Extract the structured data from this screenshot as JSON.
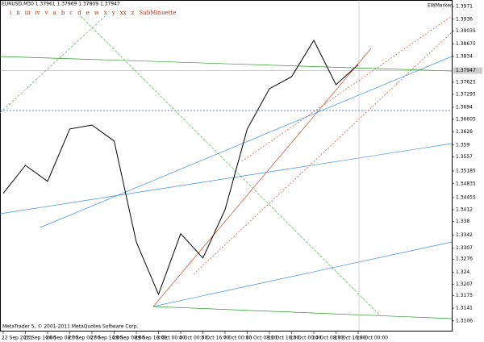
{
  "chart_data": {
    "type": "line",
    "title": "EURUSD,M30  1.37961 1.37969 1.37809 1.37947",
    "wave_menu": [
      "i",
      "ii",
      "iii",
      "iv",
      "v",
      "a",
      "b",
      "c",
      "d",
      "e",
      "w",
      "x",
      "y",
      "xx",
      "z",
      "SubMinuette"
    ],
    "corner_label": "EWMarker",
    "copyright": "MetaTrader 5, © 2001-2011 MetaQuotes Software Corp.",
    "categories": [
      "22 Sep 2011",
      "23 Sep 16:00",
      "26 Sep 08:00",
      "27 Sep 00:00",
      "27 Sep 16:00",
      "28 Sep 08:00",
      "29 Sep 16:00",
      "3 Oct 00:00",
      "4 Oct 00:00",
      "5 Oct 16:00",
      "7 Oct 00:00",
      "10 Oct 08:00",
      "11 Oct 16:00",
      "13 Oct 00:00",
      "14 Oct 08:00",
      "17 Oct 16:00",
      "19 Oct 00:00"
    ],
    "series": [
      {
        "name": "EURUSD",
        "color": "#000000",
        "values": [
          1.3457,
          1.3534,
          1.349,
          1.3634,
          1.3645,
          1.3601,
          1.3323,
          1.3179,
          1.3346,
          1.3279,
          1.3412,
          1.3634,
          1.3745,
          1.3778,
          1.3878,
          1.3756,
          1.3811
        ]
      }
    ],
    "current_price": 1.37947,
    "ylim": [
      1.3079,
      1.3989
    ],
    "yticks": [
      1.3971,
      1.3936,
      1.39035,
      1.38675,
      1.3834,
      1.37625,
      1.37295,
      1.3694,
      1.36605,
      1.3626,
      1.359,
      1.3557,
      1.35185,
      1.34835,
      1.34455,
      1.3412,
      1.338,
      1.3342,
      1.3307,
      1.3276,
      1.324,
      1.3207,
      1.3175,
      1.3141,
      1.3106
    ]
  }
}
